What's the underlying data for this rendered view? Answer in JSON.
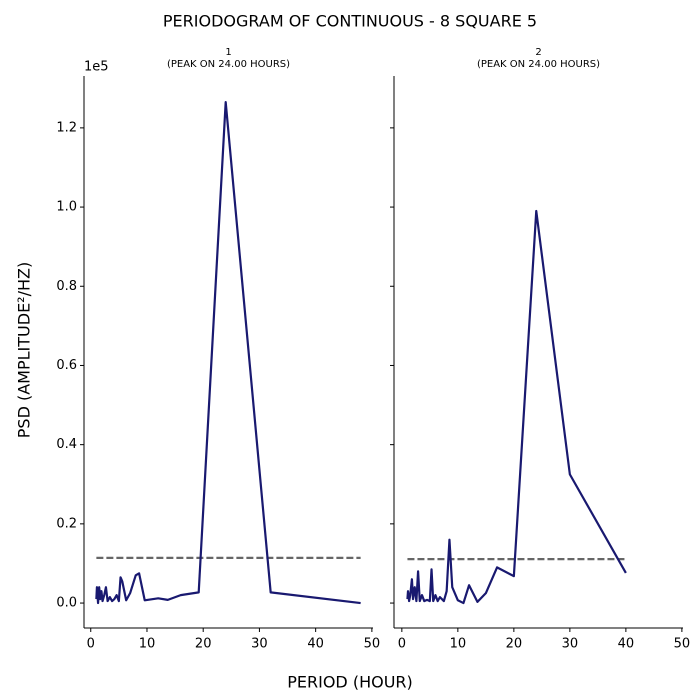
{
  "title": "PERIODOGRAM OF CONTINUOUS - 8 SQUARE 5",
  "xlabel": "PERIOD (HOUR)",
  "ylabel": "PSD (AMPLITUDE²/HZ)",
  "y_offset_label": "1e5",
  "chart_data": [
    {
      "type": "line",
      "title": "1",
      "subtitle": "(PEAK ON 24.00 HOURS)",
      "color": "#191970",
      "x": [
        1.0,
        1.1,
        1.3,
        1.5,
        1.7,
        1.9,
        2.1,
        2.4,
        2.7,
        3.0,
        3.4,
        3.8,
        4.2,
        4.6,
        5.0,
        5.3,
        5.6,
        6.3,
        7.0,
        8.0,
        8.6,
        9.6,
        12,
        13.7,
        16,
        19.2,
        24,
        32,
        48
      ],
      "values": [
        0.01,
        0.04,
        0.0,
        0.04,
        0.01,
        0.03,
        0.005,
        0.02,
        0.04,
        0.005,
        0.015,
        0.005,
        0.01,
        0.02,
        0.005,
        0.065,
        0.055,
        0.007,
        0.025,
        0.07,
        0.075,
        0.007,
        0.012,
        0.008,
        0.02,
        0.027,
        1.265,
        0.027,
        0.0
      ],
      "threshold": {
        "x": [
          1,
          48
        ],
        "y": 0.114,
        "color": "#666666"
      },
      "xlim": [
        -1.2,
        50.2
      ],
      "xticks": [
        0,
        10,
        20,
        30,
        40,
        50
      ],
      "ylim": [
        -0.063,
        1.331
      ],
      "yticks": [
        {
          "value": 0,
          "label": "0.0"
        },
        0.2,
        0.4,
        0.6,
        0.8,
        {
          "value": 1,
          "label": "1.0"
        },
        1.2
      ]
    },
    {
      "type": "line",
      "title": "2",
      "subtitle": "(PEAK ON 24.00 HOURS)",
      "color": "#191970",
      "sharey": true,
      "x": [
        1,
        1.1,
        1.3,
        1.5,
        1.8,
        2.0,
        2.3,
        2.6,
        2.9,
        3.2,
        3.6,
        4.0,
        4.5,
        5.0,
        5.3,
        5.6,
        6.0,
        6.4,
        6.8,
        7.5,
        8.0,
        8.5,
        9.0,
        10,
        11,
        12,
        13.5,
        15,
        17,
        20,
        24,
        30,
        40
      ],
      "values": [
        0.01,
        0.03,
        0.005,
        0.02,
        0.06,
        0.01,
        0.04,
        0.005,
        0.08,
        0.005,
        0.02,
        0.005,
        0.008,
        0.005,
        0.085,
        0.005,
        0.02,
        0.005,
        0.015,
        0.005,
        0.03,
        0.16,
        0.04,
        0.007,
        0.0,
        0.045,
        0.003,
        0.025,
        0.09,
        0.068,
        0.99,
        0.325,
        0.076
      ],
      "threshold": {
        "x": [
          1,
          40
        ],
        "y": 0.111,
        "color": "#666666"
      },
      "xlim": [
        -1.4,
        50.2
      ],
      "xticks": [
        0,
        10,
        20,
        30,
        40,
        50
      ]
    }
  ]
}
